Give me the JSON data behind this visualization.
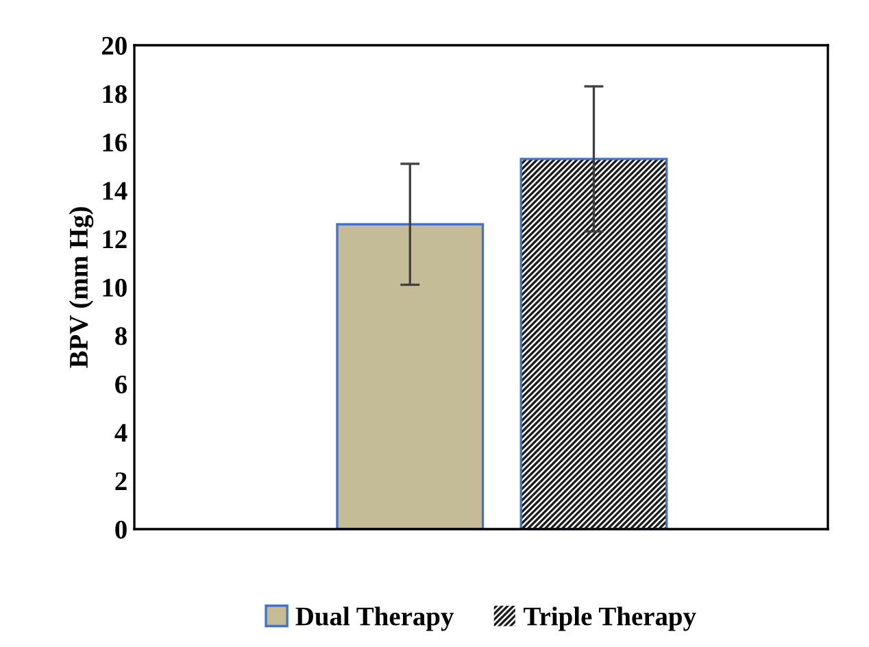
{
  "chart_data": {
    "type": "bar",
    "ylabel": "BPV (mm Hg)",
    "categories": [
      null
    ],
    "series": [
      {
        "name": "Dual Therapy",
        "color": "#c4bc96",
        "values": [
          12.6
        ],
        "errors": [
          2.5
        ]
      },
      {
        "name": "Triple Therapy",
        "color": "#1a1a1a",
        "values": [
          15.3
        ],
        "errors": [
          3.0
        ]
      }
    ],
    "ylim": [
      0,
      20
    ],
    "yticks": [
      0,
      2,
      4,
      6,
      8,
      10,
      12,
      14,
      16,
      18,
      20
    ],
    "grid": false,
    "legend": "bottom"
  }
}
